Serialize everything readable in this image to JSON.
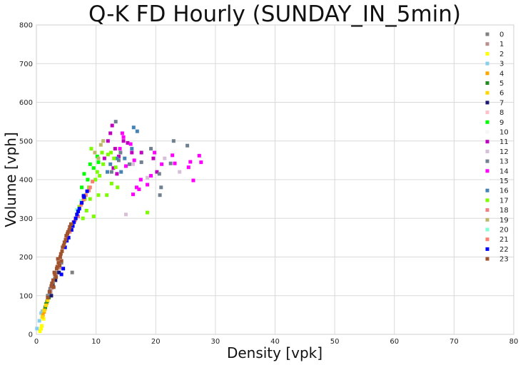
{
  "chart_data": {
    "type": "scatter",
    "title": "Q-K FD Hourly (SUNDAY_IN_5min)",
    "xlabel": "Density [vpk]",
    "ylabel": "Volume [vph]",
    "xlim": [
      0,
      80
    ],
    "ylim": [
      0,
      800
    ],
    "xticks": [
      "0",
      "10",
      "20",
      "30",
      "40",
      "50",
      "60",
      "70",
      "80"
    ],
    "yticks": [
      "0",
      "100",
      "200",
      "300",
      "400",
      "500",
      "600",
      "700",
      "800"
    ],
    "grid": true,
    "legend_position": "top-right",
    "series": [
      {
        "name": "0",
        "color": "#808080",
        "points": [
          [
            1.9,
            100
          ],
          [
            2.3,
            118
          ],
          [
            3.1,
            145
          ],
          [
            3.6,
            160
          ],
          [
            4.2,
            185
          ],
          [
            6.0,
            160
          ],
          [
            2.8,
            130
          ]
        ]
      },
      {
        "name": "1",
        "color": "#bc8f8f",
        "points": [
          [
            2.0,
            95
          ],
          [
            2.6,
            120
          ],
          [
            3.3,
            150
          ],
          [
            3.9,
            172
          ],
          [
            2.4,
            110
          ]
        ]
      },
      {
        "name": "2",
        "color": "#ffff00",
        "points": [
          [
            0.6,
            8
          ],
          [
            0.9,
            22
          ],
          [
            1.2,
            40
          ],
          [
            0.8,
            15
          ]
        ]
      },
      {
        "name": "3",
        "color": "#87ceeb",
        "points": [
          [
            0.1,
            15
          ],
          [
            0.5,
            35
          ],
          [
            0.8,
            55
          ],
          [
            1.0,
            60
          ]
        ]
      },
      {
        "name": "4",
        "color": "#ffa500",
        "points": [
          [
            1.1,
            50
          ],
          [
            1.4,
            65
          ],
          [
            1.7,
            80
          ],
          [
            1.3,
            58
          ]
        ]
      },
      {
        "name": "5",
        "color": "#228b22",
        "points": [
          [
            1.5,
            70
          ],
          [
            1.8,
            85
          ],
          [
            2.1,
            95
          ],
          [
            1.6,
            78
          ]
        ]
      },
      {
        "name": "6",
        "color": "#ffd700",
        "points": [
          [
            1.0,
            45
          ],
          [
            1.3,
            62
          ],
          [
            1.6,
            75
          ],
          [
            1.9,
            88
          ]
        ]
      },
      {
        "name": "7",
        "color": "#191970",
        "points": [
          [
            2.2,
            110
          ],
          [
            2.7,
            125
          ],
          [
            3.2,
            140
          ],
          [
            3.8,
            160
          ],
          [
            2.5,
            100
          ]
        ]
      },
      {
        "name": "8",
        "color": "#ffc0cb",
        "points": [
          [
            4.5,
            230
          ],
          [
            5.2,
            260
          ],
          [
            5.8,
            280
          ],
          [
            6.4,
            300
          ],
          [
            7.0,
            320
          ]
        ]
      },
      {
        "name": "9",
        "color": "#00ff00",
        "points": [
          [
            8.0,
            415
          ],
          [
            9.0,
            440
          ],
          [
            10.2,
            460
          ],
          [
            11.0,
            470
          ],
          [
            7.6,
            380
          ],
          [
            8.6,
            400
          ],
          [
            9.6,
            430
          ],
          [
            10.4,
            445
          ]
        ]
      },
      {
        "name": "10",
        "color": "#f5f5f5",
        "points": [
          [
            6.5,
            300
          ],
          [
            7.4,
            330
          ],
          [
            8.2,
            350
          ]
        ]
      },
      {
        "name": "11",
        "color": "#c000c0",
        "points": [
          [
            12.0,
            500
          ],
          [
            12.4,
            520
          ],
          [
            13.2,
            480
          ],
          [
            13.8,
            460
          ],
          [
            12.7,
            540
          ],
          [
            11.4,
            455
          ],
          [
            12.9,
            430
          ],
          [
            14.6,
            500
          ],
          [
            16.0,
            470
          ],
          [
            17.6,
            470
          ],
          [
            20.2,
            420
          ],
          [
            19.6,
            455
          ],
          [
            13.5,
            415
          ],
          [
            15.3,
            495
          ]
        ]
      },
      {
        "name": "12",
        "color": "#d8bfd8",
        "points": [
          [
            15.0,
            310
          ],
          [
            16.2,
            440
          ],
          [
            18.6,
            405
          ],
          [
            21.5,
            455
          ],
          [
            24.0,
            420
          ]
        ]
      },
      {
        "name": "13",
        "color": "#708090",
        "points": [
          [
            13.3,
            550
          ],
          [
            15.6,
            440
          ],
          [
            17.6,
            445
          ],
          [
            19.2,
            480
          ],
          [
            20.6,
            415
          ],
          [
            20.7,
            360
          ],
          [
            20.9,
            380
          ],
          [
            23.0,
            500
          ],
          [
            25.3,
            488
          ],
          [
            22.5,
            442
          ],
          [
            14.1,
            470
          ],
          [
            13.8,
            450
          ],
          [
            12.6,
            420
          ]
        ]
      },
      {
        "name": "14",
        "color": "#ff00ff",
        "points": [
          [
            14.4,
            520
          ],
          [
            14.6,
            510
          ],
          [
            15.0,
            435
          ],
          [
            16.4,
            450
          ],
          [
            16.8,
            380
          ],
          [
            17.2,
            375
          ],
          [
            18.6,
            387
          ],
          [
            19.2,
            410
          ],
          [
            19.8,
            470
          ],
          [
            22.8,
            463
          ],
          [
            23.2,
            442
          ],
          [
            25.5,
            432
          ],
          [
            25.8,
            446
          ],
          [
            26.3,
            398
          ],
          [
            27.3,
            462
          ],
          [
            27.6,
            445
          ],
          [
            16.2,
            362
          ],
          [
            15.8,
            492
          ],
          [
            17.5,
            400
          ],
          [
            14.0,
            480
          ],
          [
            21.0,
            440
          ]
        ]
      },
      {
        "name": "15",
        "color": "#ffffff",
        "points": [
          [
            6.0,
            295
          ],
          [
            7.2,
            325
          ]
        ]
      },
      {
        "name": "16",
        "color": "#4682b4",
        "points": [
          [
            16.3,
            535
          ],
          [
            16.9,
            525
          ],
          [
            16.0,
            480
          ],
          [
            14.8,
            455
          ],
          [
            13.5,
            455
          ],
          [
            14.2,
            420
          ],
          [
            12.4,
            440
          ],
          [
            11.9,
            420
          ]
        ]
      },
      {
        "name": "17",
        "color": "#7cfc00",
        "points": [
          [
            9.2,
            480
          ],
          [
            10.2,
            420
          ],
          [
            11.0,
            470
          ],
          [
            12.0,
            465
          ],
          [
            13.0,
            455
          ],
          [
            13.6,
            380
          ],
          [
            12.6,
            390
          ],
          [
            9.6,
            305
          ],
          [
            18.6,
            315
          ],
          [
            11.8,
            360
          ],
          [
            10.4,
            360
          ],
          [
            7.8,
            300
          ],
          [
            8.4,
            320
          ],
          [
            7.2,
            330
          ],
          [
            8.8,
            380
          ],
          [
            9.9,
            400
          ],
          [
            12.5,
            470
          ],
          [
            11.2,
            440
          ],
          [
            10.6,
            410
          ],
          [
            13.3,
            432
          ],
          [
            9.0,
            350
          ],
          [
            8.1,
            350
          ],
          [
            6.8,
            310
          ]
        ]
      },
      {
        "name": "18",
        "color": "#f08080",
        "points": [
          [
            5.2,
            250
          ],
          [
            5.6,
            265
          ],
          [
            6.0,
            280
          ],
          [
            6.5,
            295
          ],
          [
            7.0,
            305
          ]
        ]
      },
      {
        "name": "19",
        "color": "#bdb76b",
        "points": [
          [
            10.8,
            490
          ],
          [
            11.2,
            500
          ],
          [
            9.8,
            470
          ],
          [
            10.4,
            455
          ]
        ]
      },
      {
        "name": "20",
        "color": "#7fffd4",
        "points": [
          [
            7.5,
            345
          ],
          [
            8.0,
            360
          ],
          [
            6.8,
            322
          ]
        ]
      },
      {
        "name": "21",
        "color": "#fa8072",
        "points": [
          [
            6.2,
            290
          ],
          [
            6.8,
            310
          ],
          [
            7.5,
            335
          ],
          [
            8.3,
            360
          ],
          [
            9.0,
            380
          ],
          [
            9.4,
            395
          ],
          [
            8.8,
            372
          ],
          [
            7.9,
            348
          ]
        ]
      },
      {
        "name": "22",
        "color": "#0000ff",
        "points": [
          [
            5.4,
            250
          ],
          [
            5.9,
            270
          ],
          [
            6.3,
            290
          ],
          [
            6.8,
            310
          ],
          [
            7.2,
            325
          ],
          [
            7.6,
            340
          ],
          [
            8.0,
            355
          ],
          [
            8.5,
            370
          ],
          [
            4.8,
            225
          ],
          [
            6.1,
            280
          ],
          [
            4.5,
            170
          ],
          [
            6.6,
            300
          ],
          [
            5.1,
            242
          ],
          [
            7.0,
            318
          ],
          [
            7.9,
            358
          ],
          [
            4.2,
            155
          ]
        ]
      },
      {
        "name": "23",
        "color": "#a0522d",
        "points": [
          [
            1.9,
            95
          ],
          [
            2.2,
            110
          ],
          [
            2.5,
            125
          ],
          [
            2.8,
            140
          ],
          [
            3.1,
            155
          ],
          [
            3.4,
            170
          ],
          [
            3.7,
            185
          ],
          [
            4.0,
            200
          ],
          [
            4.3,
            215
          ],
          [
            4.6,
            230
          ],
          [
            4.9,
            245
          ],
          [
            5.2,
            260
          ],
          [
            5.5,
            270
          ],
          [
            5.8,
            285
          ],
          [
            3.0,
            160
          ],
          [
            3.6,
            195
          ],
          [
            4.4,
            225
          ],
          [
            5.0,
            255
          ],
          [
            3.3,
            148
          ],
          [
            4.1,
            208
          ],
          [
            4.7,
            238
          ],
          [
            2.6,
            132
          ],
          [
            3.9,
            178
          ],
          [
            5.3,
            265
          ],
          [
            5.6,
            278
          ],
          [
            4.2,
            190
          ],
          [
            3.5,
            175
          ],
          [
            2.9,
            122
          ]
        ]
      }
    ]
  }
}
